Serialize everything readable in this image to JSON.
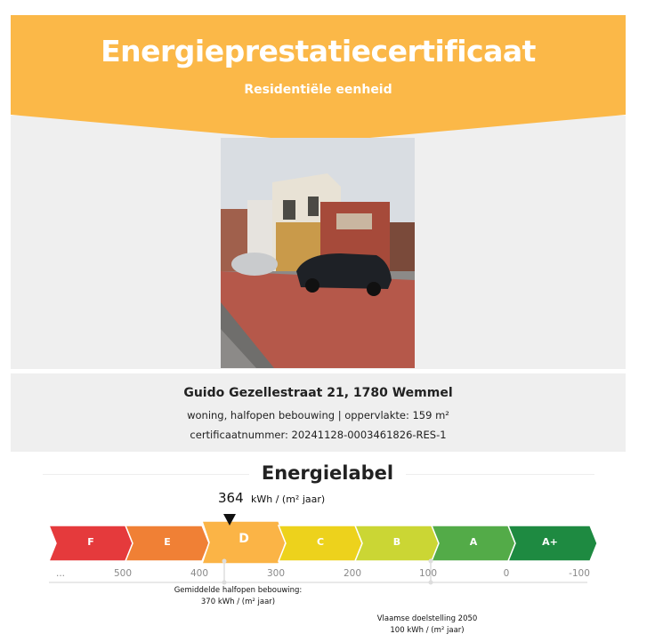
{
  "header": {
    "title": "Energieprestatiecertificaat",
    "subtitle": "Residentiële eenheid",
    "color": "#fbb848"
  },
  "photo": {
    "description_icon": "house-photo"
  },
  "info": {
    "address": "Guido Gezellestraat 21, 1780 Wemmel",
    "description": "woning, halfopen bebouwing | oppervlakte: 159 m²",
    "certificate": "certificaatnummer: 20241128-0003461826-RES-1"
  },
  "energylabel": {
    "title": "Energielabel",
    "value": "364",
    "unit": "kWh / (m² jaar)",
    "current_label": "D",
    "segments": [
      {
        "label": "F",
        "color": "#e53a3c"
      },
      {
        "label": "E",
        "color": "#f08035"
      },
      {
        "label": "D",
        "color": "#fbb446"
      },
      {
        "label": "C",
        "color": "#edd21c"
      },
      {
        "label": "B",
        "color": "#cbd634"
      },
      {
        "label": "A",
        "color": "#53ab48"
      },
      {
        "label": "A+",
        "color": "#1e8a41"
      }
    ],
    "ticks": [
      "...",
      "500",
      "400",
      "300",
      "200",
      "100",
      "0",
      "-100"
    ],
    "average": {
      "line1": "Gemiddelde halfopen bebouwing:",
      "line2": "370 kWh / (m² jaar)"
    },
    "target": {
      "line1": "Vlaamse doelstelling 2050",
      "line2": "100 kWh / (m² jaar)"
    }
  }
}
